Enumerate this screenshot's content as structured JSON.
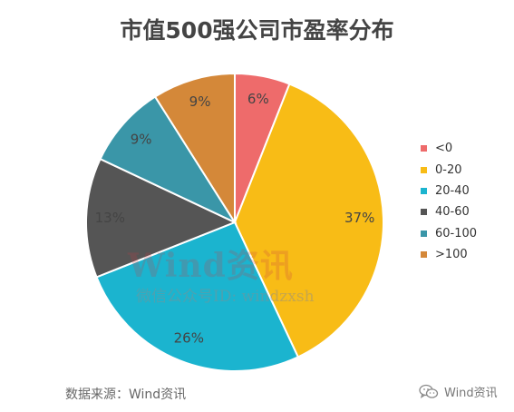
{
  "chart_data": {
    "type": "pie",
    "title": "市值500强公司市盈率分布",
    "categories": [
      "<0",
      "0-20",
      "20-40",
      "40-60",
      "60-100",
      ">100"
    ],
    "values": [
      6,
      37,
      26,
      13,
      9,
      9
    ],
    "labels": [
      "6%",
      "37%",
      "26%",
      "13%",
      "9%",
      "9%"
    ],
    "colors": [
      "#EE6B6B",
      "#F8BC16",
      "#1BB4CF",
      "#555555",
      "#3A96A8",
      "#D48839"
    ],
    "legend": "right"
  },
  "source": "数据来源：Wind资讯",
  "watermark": {
    "main": "Wind资讯",
    "sub": "微信公众号ID: windzxsh"
  },
  "brand": {
    "icon": "wechat-icon",
    "text": "Wind资讯"
  }
}
